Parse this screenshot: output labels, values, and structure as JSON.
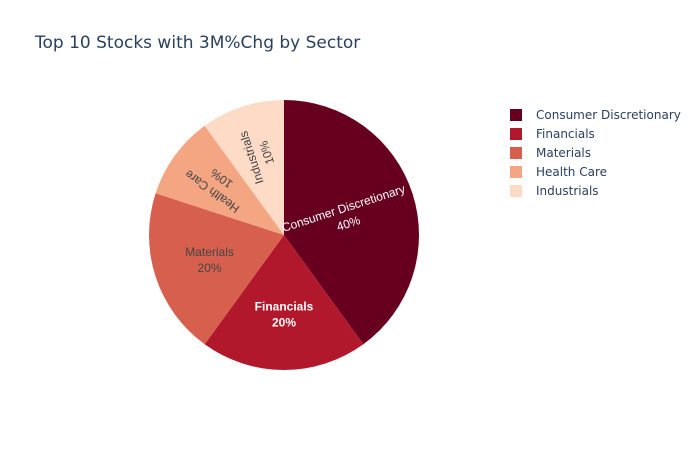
{
  "chart_data": {
    "type": "pie",
    "title": "Top 10 Stocks with 3M%Chg by Sector",
    "labels": [
      "Consumer Discretionary",
      "Financials",
      "Materials",
      "Health Care",
      "Industrials"
    ],
    "values": [
      40,
      20,
      20,
      10,
      10
    ],
    "slice_text": [
      "40%",
      "20%",
      "20%",
      "10%",
      "10%"
    ],
    "colors": [
      "#67001f",
      "#b2182b",
      "#d6604d",
      "#f4a582",
      "#fddbc7"
    ],
    "text_colors": [
      "#ffffff",
      "#ffffff",
      "#444444",
      "#444444",
      "#444444"
    ],
    "direction": "clockwise",
    "legend": "right"
  }
}
